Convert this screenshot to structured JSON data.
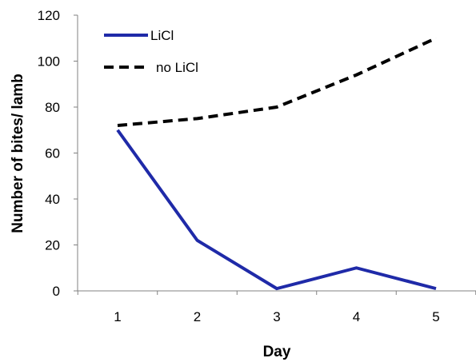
{
  "chart_data": {
    "type": "line",
    "xlabel": "Day",
    "ylabel": "Number of bites/ lamb",
    "categories": [
      "1",
      "2",
      "3",
      "4",
      "5"
    ],
    "ylim": [
      0,
      120
    ],
    "yticks": [
      "0",
      "20",
      "40",
      "60",
      "80",
      "100",
      "120"
    ],
    "grid": false,
    "legend_position": "top-left",
    "series": [
      {
        "name": "LiCl",
        "values": [
          70,
          22,
          1,
          10,
          1
        ],
        "color": "#1f2aa8",
        "style": "solid"
      },
      {
        "name": "no LiCl",
        "values": [
          72,
          75,
          80,
          94,
          110
        ],
        "color": "#000000",
        "style": "dashed"
      }
    ]
  }
}
